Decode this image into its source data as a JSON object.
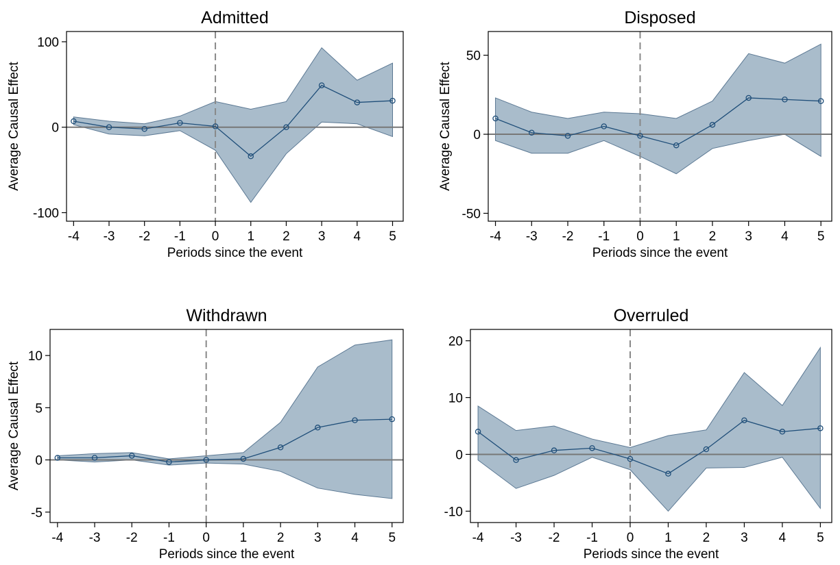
{
  "figure": {
    "style": {
      "band_fill": "#a9bccb",
      "band_stroke": "#5b7893",
      "line_color": "#1f4e79",
      "zero_line_color": "#777777",
      "event_line_color": "#888888"
    }
  },
  "chart_data": [
    {
      "type": "line",
      "title": "Admitted",
      "xlabel": "Periods since the event",
      "ylabel": "Average Causal Effect",
      "x": [
        -4,
        -3,
        -2,
        -1,
        0,
        1,
        2,
        3,
        4,
        5
      ],
      "xticks": [
        -4,
        -3,
        -2,
        -1,
        0,
        1,
        2,
        3,
        4,
        5
      ],
      "xlim": [
        -4.2,
        5.3
      ],
      "ylim": [
        -110,
        112
      ],
      "yticks": [
        -100,
        0,
        100
      ],
      "series": [
        {
          "estimate": [
            7,
            0,
            -2,
            5,
            1,
            -34,
            0,
            49,
            29,
            31
          ],
          "ci_lower": [
            3,
            -8,
            -10,
            -4,
            -27,
            -88,
            -31,
            6,
            4,
            -11
          ],
          "ci_upper": [
            12,
            7,
            4,
            13,
            30,
            21,
            30,
            93,
            55,
            75
          ]
        }
      ],
      "reference_lines": {
        "horizontal": 0,
        "vertical_dashed": 0
      },
      "grid": false
    },
    {
      "type": "line",
      "title": "Disposed",
      "xlabel": "Periods since the event",
      "ylabel": "Average Causal Effect",
      "x": [
        -4,
        -3,
        -2,
        -1,
        0,
        1,
        2,
        3,
        4,
        5
      ],
      "xticks": [
        -4,
        -3,
        -2,
        -1,
        0,
        1,
        2,
        3,
        4,
        5
      ],
      "xlim": [
        -4.2,
        5.3
      ],
      "ylim": [
        -55,
        65
      ],
      "yticks": [
        -50,
        0,
        50
      ],
      "series": [
        {
          "estimate": [
            10,
            1,
            -1,
            5,
            -1,
            -7,
            6,
            23,
            22,
            21
          ],
          "ci_lower": [
            -4,
            -12,
            -12,
            -4,
            -14,
            -25,
            -9,
            -4,
            0,
            -14
          ],
          "ci_upper": [
            23,
            14,
            10,
            14,
            13,
            10,
            21,
            51,
            45,
            57
          ]
        }
      ],
      "reference_lines": {
        "horizontal": 0,
        "vertical_dashed": 0
      },
      "grid": false
    },
    {
      "type": "line",
      "title": "Withdrawn",
      "xlabel": "Periods since the event",
      "ylabel": "Average Causal Effect",
      "x": [
        -4,
        -3,
        -2,
        -1,
        0,
        1,
        2,
        3,
        4,
        5
      ],
      "xticks": [
        -4,
        -3,
        -2,
        -1,
        0,
        1,
        2,
        3,
        4,
        5
      ],
      "xlim": [
        -4.2,
        5.3
      ],
      "ylim": [
        -6,
        12.5
      ],
      "yticks": [
        -5,
        0,
        5,
        10
      ],
      "series": [
        {
          "estimate": [
            0.2,
            0.2,
            0.4,
            -0.2,
            0.0,
            0.1,
            1.2,
            3.1,
            3.8,
            3.9
          ],
          "ci_lower": [
            0.0,
            -0.2,
            0.0,
            -0.5,
            -0.3,
            -0.4,
            -1.1,
            -2.7,
            -3.3,
            -3.7
          ],
          "ci_upper": [
            0.4,
            0.6,
            0.7,
            0.1,
            0.4,
            0.7,
            3.6,
            8.9,
            11.0,
            11.5
          ]
        }
      ],
      "reference_lines": {
        "horizontal": 0,
        "vertical_dashed": 0
      },
      "grid": false
    },
    {
      "type": "line",
      "title": "Overruled",
      "xlabel": "Periods since the event",
      "ylabel": "",
      "x": [
        -4,
        -3,
        -2,
        -1,
        0,
        1,
        2,
        3,
        4,
        5
      ],
      "xticks": [
        -4,
        -3,
        -2,
        -1,
        0,
        1,
        2,
        3,
        4,
        5
      ],
      "xlim": [
        -4.2,
        5.3
      ],
      "ylim": [
        -12,
        22
      ],
      "yticks": [
        -10,
        0,
        10,
        20
      ],
      "series": [
        {
          "estimate": [
            4,
            -1,
            0.7,
            1.1,
            -0.8,
            -3.4,
            0.9,
            6,
            4,
            4.6
          ],
          "ci_lower": [
            -1,
            -6,
            -3.7,
            -0.5,
            -2.7,
            -10,
            -2.4,
            -2.3,
            -0.5,
            -9.5
          ],
          "ci_upper": [
            8.5,
            4.2,
            5,
            2.7,
            1.2,
            3.3,
            4.3,
            14.4,
            8.6,
            18.8
          ]
        }
      ],
      "reference_lines": {
        "horizontal": 0,
        "vertical_dashed": 0
      },
      "grid": false
    }
  ]
}
